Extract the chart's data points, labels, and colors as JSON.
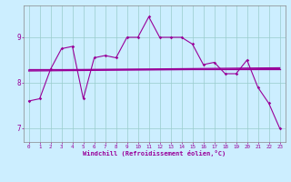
{
  "title": "",
  "xlabel": "Windchill (Refroidissement éolien,°C)",
  "bg_color": "#cceeff",
  "line_color": "#990099",
  "grid_color": "#99cccc",
  "xlim": [
    -0.5,
    23.5
  ],
  "ylim": [
    6.7,
    9.7
  ],
  "xticks": [
    0,
    1,
    2,
    3,
    4,
    5,
    6,
    7,
    8,
    9,
    10,
    11,
    12,
    13,
    14,
    15,
    16,
    17,
    18,
    19,
    20,
    21,
    22,
    23
  ],
  "yticks": [
    7,
    8,
    9
  ],
  "line1_x": [
    0,
    1,
    2,
    3,
    4,
    5,
    6,
    7,
    8,
    9,
    10,
    11,
    12,
    13,
    14,
    15,
    16,
    17,
    18,
    19,
    20,
    21,
    22,
    23
  ],
  "line1_y": [
    7.6,
    7.65,
    8.3,
    8.75,
    8.8,
    7.65,
    8.55,
    8.6,
    8.55,
    9.0,
    9.0,
    9.45,
    9.0,
    9.0,
    9.0,
    8.85,
    8.4,
    8.45,
    8.2,
    8.2,
    8.5,
    7.9,
    7.55,
    7.0
  ],
  "ref_lines": [
    {
      "x0": 0,
      "x1": 23,
      "y0": 8.3,
      "y1": 8.3
    },
    {
      "x0": 0,
      "x1": 23,
      "y0": 8.28,
      "y1": 8.33
    },
    {
      "x0": 0,
      "x1": 23,
      "y0": 8.26,
      "y1": 8.31
    }
  ]
}
